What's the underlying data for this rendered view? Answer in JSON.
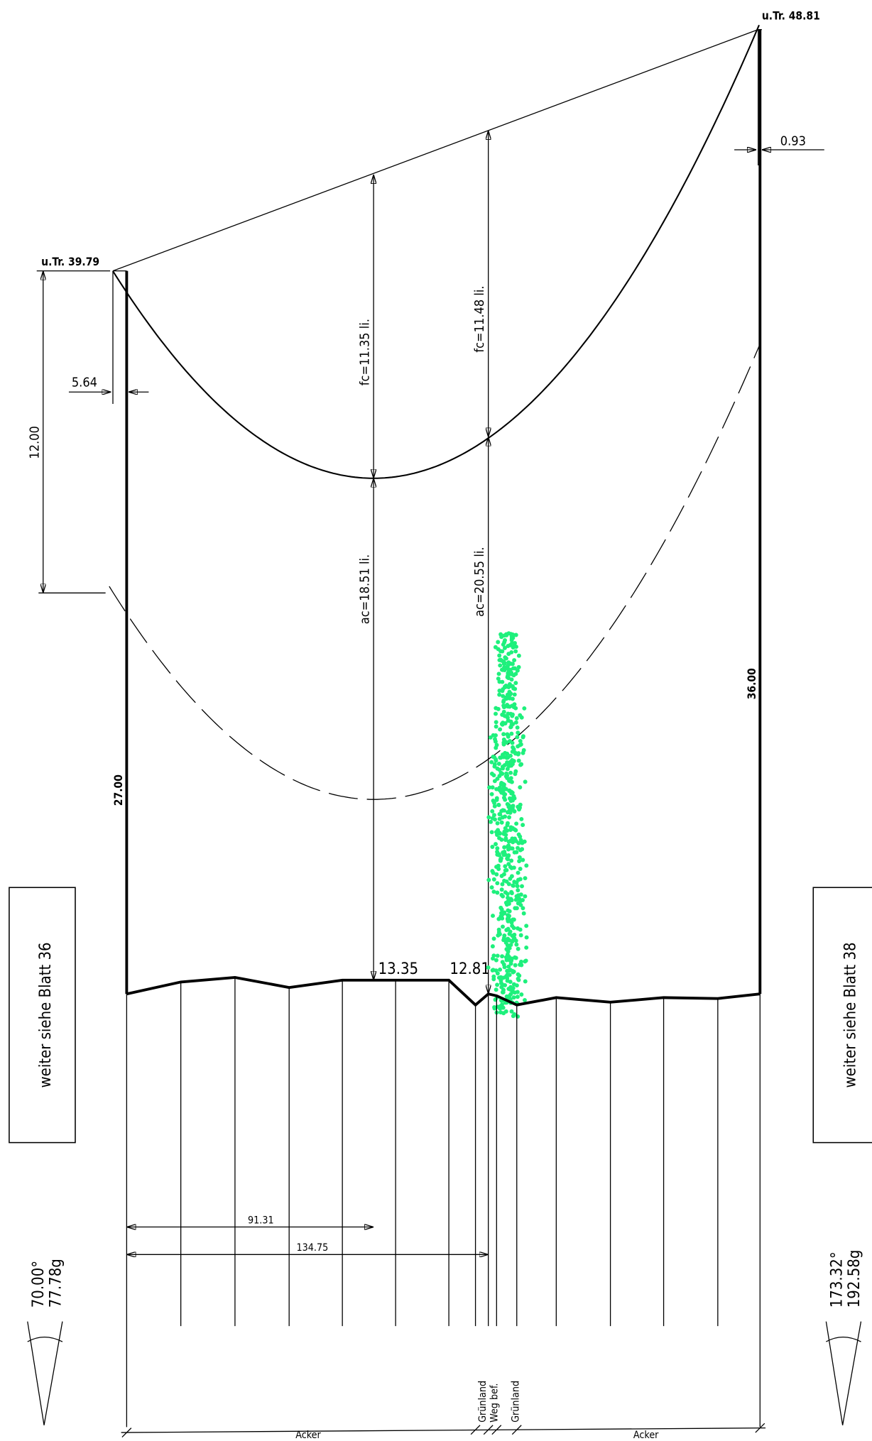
{
  "towers": [
    {
      "label": "u.Tr. 39.79",
      "height": "27.00"
    },
    {
      "label": "u.Tr. 48.81",
      "height": "36.00"
    }
  ],
  "dimensions": {
    "left_offset": "5.64",
    "right_offset": "0.93",
    "clearance_drop": "12.00"
  },
  "spans": [
    {
      "sag": "fc=11.35 li.",
      "clearance": "ac=18.51 li.",
      "ground": "13.35",
      "distance": "91.31"
    },
    {
      "sag": "fc=11.48 li.",
      "clearance": "ac=20.55 li.",
      "ground": "12.81",
      "distance": "134.75"
    }
  ],
  "continuation": [
    "weiter siehe Blatt 36",
    "weiter siehe Blatt 38"
  ],
  "angles": [
    {
      "degrees": "70.00°",
      "gon": "77.78g"
    },
    {
      "degrees": "173.32°",
      "gon": "192.58g"
    }
  ],
  "land_use": [
    "Acker",
    "Grünland",
    "Weg bef.",
    "Grünland",
    "Acker"
  ]
}
